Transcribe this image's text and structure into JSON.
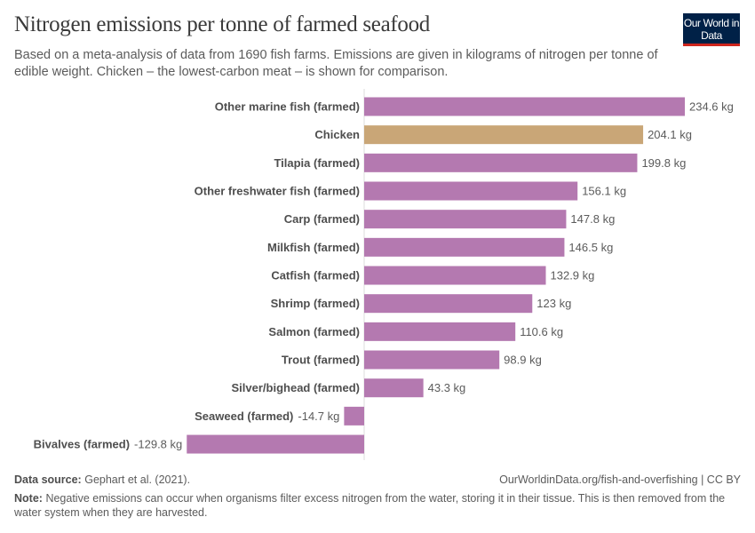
{
  "header": {
    "title": "Nitrogen emissions per tonne of farmed seafood",
    "subtitle": "Based on a meta-analysis of data from 1690 fish farms. Emissions are given in kilograms of nitrogen per tonne of edible weight. Chicken – the lowest-carbon meat – is shown for comparison.",
    "logo": "Our World in Data"
  },
  "chart_data": {
    "type": "bar",
    "orientation": "horizontal",
    "unit": "kg",
    "categories": [
      "Other marine fish (farmed)",
      "Chicken",
      "Tilapia (farmed)",
      "Other freshwater fish (farmed)",
      "Carp (farmed)",
      "Milkfish (farmed)",
      "Catfish (farmed)",
      "Shrimp (farmed)",
      "Salmon (farmed)",
      "Trout (farmed)",
      "Silver/bighead (farmed)",
      "Seaweed (farmed)",
      "Bivalves (farmed)"
    ],
    "values": [
      234.6,
      204.1,
      199.8,
      156.1,
      147.8,
      146.5,
      132.9,
      123,
      110.6,
      98.9,
      43.3,
      -14.7,
      -129.8
    ],
    "value_labels": [
      "234.6 kg",
      "204.1 kg",
      "199.8 kg",
      "156.1 kg",
      "147.8 kg",
      "146.5 kg",
      "132.9 kg",
      "123 kg",
      "110.6 kg",
      "98.9 kg",
      "43.3 kg",
      "-14.7 kg",
      "-129.8 kg"
    ],
    "colors": {
      "default": "#b479b0",
      "highlight": "#c9a677"
    },
    "highlighted": [
      "Chicken"
    ],
    "grid": false
  },
  "footer": {
    "source_label": "Data source:",
    "source": "Gephart et al. (2021).",
    "url": "OurWorldinData.org/fish-and-overfishing | CC BY",
    "note_label": "Note:",
    "note": "Negative emissions can occur when organisms filter excess nitrogen from the water, storing it in their tissue. This is then removed from the water system when they are harvested."
  }
}
